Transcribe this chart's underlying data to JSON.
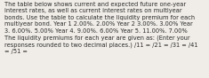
{
  "text": "The table below shows current and expected future one-year\ninterest rates, as well as current interest rates on multiyear\nbonds. Use the table to calculate the liquidity premium for each\nmultiyear bond. Year 1 2.00%. 2.00% Year 2 3.00%. 3.00% Year\n3. 6.00%. 5.00% Year 4. 9.00%. 6.00% Year 5. 11.00%. 7.00%\nThe liquidity premiums for each year are given as: (Enter your\nresponses rounded to two decimal places.) /11 = /21 = /31 = /41\n= /51 =",
  "font_size": 4.8,
  "text_color": "#2a2a2a",
  "background_color": "#f0ede8",
  "font_family": "DejaVu Sans"
}
